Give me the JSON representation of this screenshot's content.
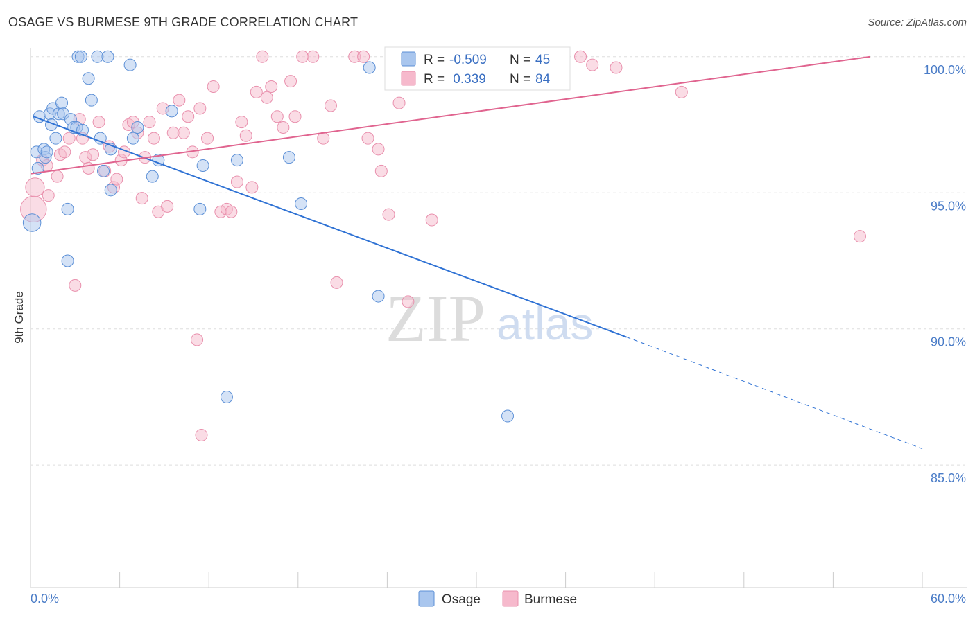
{
  "header": {
    "title": "OSAGE VS BURMESE 9TH GRADE CORRELATION CHART",
    "source": "Source: ZipAtlas.com"
  },
  "watermark": {
    "part1": "ZIP",
    "part2": "atlas"
  },
  "legend_top": {
    "rows": [
      {
        "r_label": "R =",
        "r_value": "-0.509",
        "n_label": "N =",
        "n_value": "45"
      },
      {
        "r_label": "R =",
        "r_value": " 0.339",
        "n_label": "N =",
        "n_value": "84"
      }
    ]
  },
  "legend_bottom": {
    "items": [
      "Osage",
      "Burmese"
    ]
  },
  "colors": {
    "osage_fill": "#a9c6ee",
    "osage_stroke": "#5b8fd6",
    "osage_line": "#2f72d4",
    "burmese_fill": "#f6b9cc",
    "burmese_stroke": "#e990ad",
    "burmese_line": "#e0648f",
    "grid": "#dddddd",
    "axis_text": "#4a7cc7"
  },
  "chart_data": {
    "type": "scatter",
    "title": "OSAGE VS BURMESE 9TH GRADE CORRELATION CHART",
    "xlabel": "",
    "ylabel": "9th Grade",
    "xlim": [
      0,
      60
    ],
    "ylim": [
      80.5,
      100.3
    ],
    "x_ticks": [
      "0.0%",
      "60.0%"
    ],
    "y_ticks": [
      {
        "value": 100,
        "label": "100.0%"
      },
      {
        "value": 95,
        "label": "95.0%"
      },
      {
        "value": 90,
        "label": "90.0%"
      },
      {
        "value": 85,
        "label": "85.0%"
      }
    ],
    "grid": true,
    "legend_position": "top-center",
    "series": [
      {
        "name": "Osage",
        "R": -0.509,
        "N": 45,
        "trend": {
          "x0": 0.2,
          "y0": 97.8,
          "x1": 40.1,
          "y1": 89.7,
          "dash_to_x": 60,
          "dash_to_y": 85.6
        },
        "points": [
          [
            0.1,
            93.9,
            1.5
          ],
          [
            0.4,
            96.5,
            1
          ],
          [
            0.5,
            95.9,
            1
          ],
          [
            0.6,
            97.8,
            1
          ],
          [
            0.9,
            96.6,
            1
          ],
          [
            1.0,
            96.3,
            1
          ],
          [
            1.1,
            96.5,
            1
          ],
          [
            1.3,
            97.9,
            1
          ],
          [
            1.4,
            97.5,
            1
          ],
          [
            1.5,
            98.1,
            1
          ],
          [
            1.7,
            97.0,
            1
          ],
          [
            1.9,
            97.9,
            1
          ],
          [
            2.1,
            98.3,
            1
          ],
          [
            2.2,
            97.9,
            1
          ],
          [
            2.5,
            94.4,
            1
          ],
          [
            2.5,
            92.5,
            1
          ],
          [
            2.7,
            97.7,
            1
          ],
          [
            2.9,
            97.4,
            1
          ],
          [
            3.1,
            97.4,
            1
          ],
          [
            3.2,
            100.0,
            1
          ],
          [
            3.4,
            100.0,
            1
          ],
          [
            3.5,
            97.3,
            1
          ],
          [
            3.9,
            99.2,
            1
          ],
          [
            4.1,
            98.4,
            1
          ],
          [
            4.5,
            100.0,
            1
          ],
          [
            4.7,
            97.0,
            1
          ],
          [
            4.9,
            95.8,
            1
          ],
          [
            5.2,
            100.0,
            1
          ],
          [
            5.4,
            96.6,
            1
          ],
          [
            5.4,
            95.1,
            1
          ],
          [
            6.7,
            99.7,
            1
          ],
          [
            6.9,
            97.0,
            1
          ],
          [
            7.2,
            97.4,
            1
          ],
          [
            8.2,
            95.6,
            1
          ],
          [
            8.6,
            96.2,
            1
          ],
          [
            9.5,
            98.0,
            1
          ],
          [
            11.4,
            94.4,
            1
          ],
          [
            11.6,
            96.0,
            1
          ],
          [
            13.2,
            87.5,
            1
          ],
          [
            13.9,
            96.2,
            1
          ],
          [
            17.4,
            96.3,
            1
          ],
          [
            18.2,
            94.6,
            1
          ],
          [
            22.8,
            99.6,
            1
          ],
          [
            23.4,
            91.2,
            1
          ],
          [
            32.1,
            86.8,
            1
          ]
        ]
      },
      {
        "name": "Burmese",
        "R": 0.339,
        "N": 84,
        "trend": {
          "x0": 0,
          "y0": 95.7,
          "x1": 56.5,
          "y1": 100.0
        },
        "points": [
          [
            0.2,
            94.4,
            2.2
          ],
          [
            0.3,
            95.2,
            1.6
          ],
          [
            0.8,
            96.2,
            1
          ],
          [
            1.1,
            96.0,
            1
          ],
          [
            1.2,
            94.9,
            1
          ],
          [
            1.8,
            95.6,
            1
          ],
          [
            2.0,
            96.4,
            1
          ],
          [
            2.3,
            96.5,
            1
          ],
          [
            2.6,
            97.0,
            1
          ],
          [
            3.0,
            91.6,
            1
          ],
          [
            3.3,
            97.7,
            1
          ],
          [
            3.5,
            97.0,
            1
          ],
          [
            3.7,
            96.3,
            1
          ],
          [
            3.9,
            95.9,
            1
          ],
          [
            4.2,
            96.4,
            1
          ],
          [
            4.6,
            97.6,
            1
          ],
          [
            5.0,
            95.8,
            1
          ],
          [
            5.3,
            96.7,
            1
          ],
          [
            5.6,
            95.2,
            1
          ],
          [
            5.8,
            95.5,
            1
          ],
          [
            6.1,
            96.2,
            1
          ],
          [
            6.3,
            96.5,
            1
          ],
          [
            6.6,
            97.5,
            1
          ],
          [
            6.9,
            97.6,
            1
          ],
          [
            7.2,
            97.2,
            1
          ],
          [
            7.5,
            94.8,
            1
          ],
          [
            7.7,
            96.3,
            1
          ],
          [
            8.0,
            97.6,
            1
          ],
          [
            8.3,
            97.0,
            1
          ],
          [
            8.6,
            94.3,
            1
          ],
          [
            8.9,
            98.1,
            1
          ],
          [
            9.2,
            94.5,
            1
          ],
          [
            9.6,
            97.2,
            1
          ],
          [
            10.0,
            98.4,
            1
          ],
          [
            10.3,
            97.2,
            1
          ],
          [
            10.6,
            97.8,
            1
          ],
          [
            10.9,
            96.5,
            1
          ],
          [
            11.4,
            98.1,
            1
          ],
          [
            11.5,
            86.1,
            1
          ],
          [
            11.2,
            89.6,
            1
          ],
          [
            11.9,
            97.0,
            1
          ],
          [
            12.3,
            98.9,
            1
          ],
          [
            12.8,
            94.3,
            1
          ],
          [
            13.2,
            94.4,
            1
          ],
          [
            13.5,
            94.3,
            1
          ],
          [
            13.9,
            95.4,
            1
          ],
          [
            14.2,
            97.6,
            1
          ],
          [
            14.5,
            97.1,
            1
          ],
          [
            14.9,
            95.2,
            1
          ],
          [
            15.2,
            98.7,
            1
          ],
          [
            15.6,
            100.0,
            1
          ],
          [
            15.9,
            98.5,
            1
          ],
          [
            16.2,
            98.9,
            1
          ],
          [
            16.6,
            97.8,
            1
          ],
          [
            17.0,
            97.4,
            1
          ],
          [
            17.5,
            99.1,
            1
          ],
          [
            17.8,
            97.8,
            1
          ],
          [
            18.3,
            100.0,
            1
          ],
          [
            19.0,
            100.0,
            1
          ],
          [
            19.7,
            97.0,
            1
          ],
          [
            20.2,
            98.2,
            1
          ],
          [
            20.6,
            91.7,
            1
          ],
          [
            21.8,
            100.0,
            1
          ],
          [
            22.4,
            100.0,
            1
          ],
          [
            22.7,
            97.0,
            1
          ],
          [
            23.4,
            96.6,
            1
          ],
          [
            23.6,
            95.8,
            1
          ],
          [
            24.1,
            94.2,
            1
          ],
          [
            24.8,
            98.3,
            1
          ],
          [
            25.5,
            100.0,
            1
          ],
          [
            26.2,
            100.0,
            1
          ],
          [
            25.4,
            91.0,
            1
          ],
          [
            27.0,
            94.0,
            1
          ],
          [
            27.4,
            99.3,
            1
          ],
          [
            28.3,
            100.0,
            1
          ],
          [
            29.9,
            100.0,
            1
          ],
          [
            30.8,
            100.0,
            1
          ],
          [
            32.0,
            100.0,
            1
          ],
          [
            35.1,
            100.0,
            1
          ],
          [
            37.0,
            100.0,
            1
          ],
          [
            37.8,
            99.7,
            1
          ],
          [
            39.4,
            99.6,
            1
          ],
          [
            43.8,
            98.7,
            1
          ],
          [
            55.8,
            93.4,
            1
          ]
        ]
      }
    ]
  }
}
